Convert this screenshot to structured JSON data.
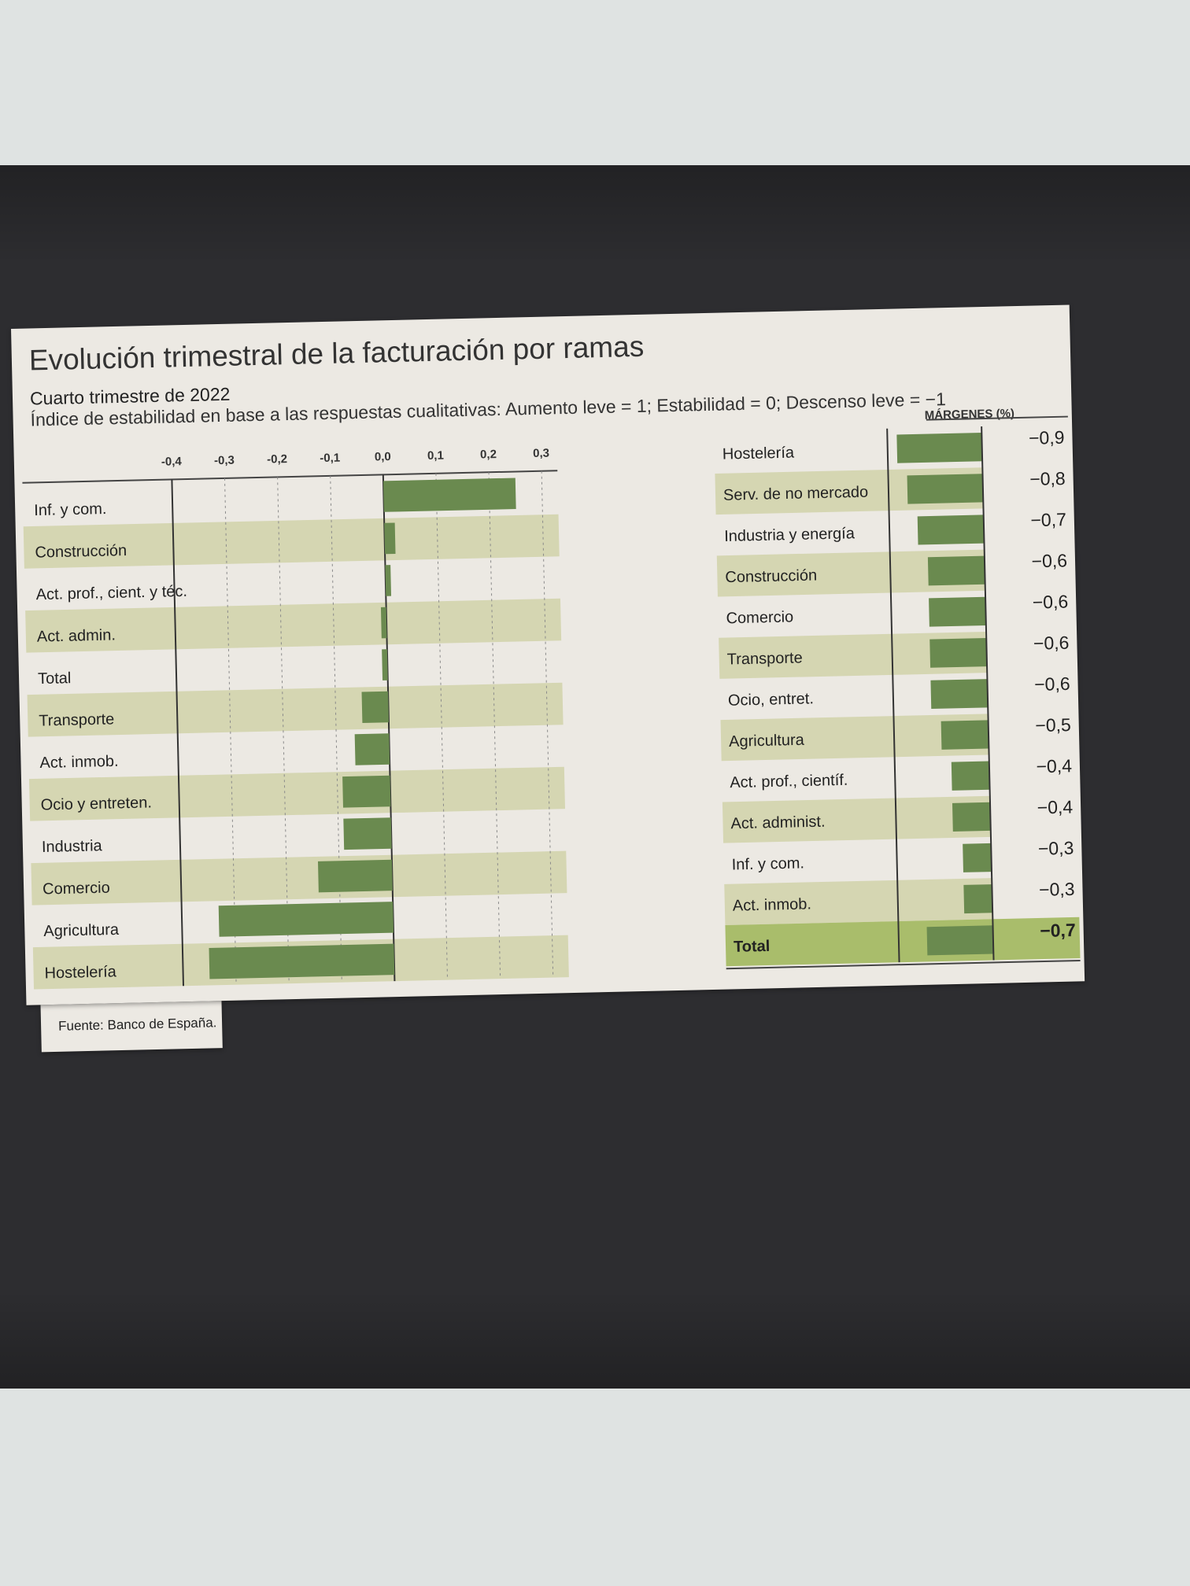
{
  "title": "Evolución trimestral de la facturación por ramas",
  "subtitle": "Cuarto trimestre de 2022",
  "note": "Índice de estabilidad en base a las respuestas cualitativas: Aumento leve = 1; Estabilidad = 0; Descenso leve = −1",
  "source": "Fuente: Banco de España.",
  "colors": {
    "bar": "#6a8a4f",
    "band": "#d5d6b2",
    "paper": "#ece9e3",
    "total_band": "#a9bd6b"
  },
  "chart_data": [
    {
      "type": "bar",
      "orientation": "horizontal",
      "categories": [
        "Inf. y com.",
        "Construcción",
        "Act. prof., cient. y téc.",
        "Act. admin.",
        "Total",
        "Transporte",
        "Act. inmob.",
        "Ocio y entreten.",
        "Industria",
        "Comercio",
        "Agricultura",
        "Hostelería"
      ],
      "values": [
        0.25,
        0.02,
        0.01,
        -0.01,
        -0.01,
        -0.05,
        -0.065,
        -0.09,
        -0.09,
        -0.14,
        -0.33,
        -0.35
      ],
      "tick_labels": [
        "-0,4",
        "-0,3",
        "-0,2",
        "-0,1",
        "0,0",
        "0,1",
        "0,2",
        "0,3"
      ],
      "ticks": [
        -0.4,
        -0.3,
        -0.2,
        -0.1,
        0.0,
        0.1,
        0.2,
        0.3
      ],
      "xlim": [
        -0.4,
        0.33
      ],
      "grid": true
    },
    {
      "type": "bar",
      "orientation": "horizontal",
      "title": "MÁRGENES (%)",
      "categories": [
        "Hostelería",
        "Serv. de no mercado",
        "Industria y energía",
        "Construcción",
        "Comercio",
        "Transporte",
        "Ocio, entret.",
        "Agricultura",
        "Act. prof., científ.",
        "Act. administ.",
        "Inf. y com.",
        "Act. inmob.",
        "Total"
      ],
      "values": [
        -0.9,
        -0.8,
        -0.7,
        -0.6,
        -0.6,
        -0.6,
        -0.6,
        -0.5,
        -0.4,
        -0.4,
        -0.3,
        -0.3,
        -0.7
      ],
      "value_labels": [
        "−0,9",
        "−0,8",
        "−0,7",
        "−0,6",
        "−0,6",
        "−0,6",
        "−0,6",
        "−0,5",
        "−0,4",
        "−0,4",
        "−0,3",
        "−0,3",
        "−0,7"
      ],
      "xlim": [
        -1.0,
        0
      ]
    }
  ]
}
